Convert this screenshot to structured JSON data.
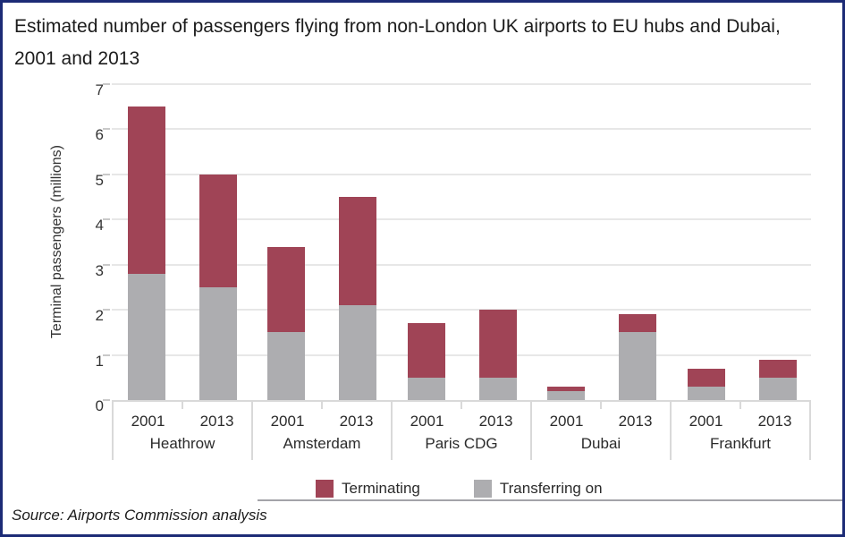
{
  "title": "Estimated number of passengers flying from non-London UK airports to EU hubs and Dubai, 2001 and 2013",
  "source": "Source: Airports Commission analysis",
  "colors": {
    "terminating": "#A04456",
    "transferring": "#ADADB0",
    "page_border": "#1C2B76",
    "gridline": "#E7E7E7",
    "axis_box_border": "#D9D9D9"
  },
  "chart_data": {
    "type": "bar",
    "stacked": true,
    "title": "Estimated number of passengers flying from non-London UK airports to EU hubs and Dubai, 2001 and 2013",
    "xlabel": "",
    "ylabel": "Terminal passengers (millions)",
    "ylim": [
      0,
      7
    ],
    "yticks": [
      0,
      1,
      2,
      3,
      4,
      5,
      6,
      7
    ],
    "grid": true,
    "legend_position": "bottom",
    "groups": [
      "Heathrow",
      "Amsterdam",
      "Paris CDG",
      "Dubai",
      "Frankfurt"
    ],
    "years": [
      "2001",
      "2013"
    ],
    "categories": [
      "Heathrow 2001",
      "Heathrow 2013",
      "Amsterdam 2001",
      "Amsterdam 2013",
      "Paris CDG 2001",
      "Paris CDG 2013",
      "Dubai 2001",
      "Dubai 2013",
      "Frankfurt 2001",
      "Frankfurt 2013"
    ],
    "series": [
      {
        "name": "Terminating",
        "color": "#A04456",
        "values": [
          3.7,
          2.5,
          1.9,
          2.4,
          1.2,
          1.5,
          0.1,
          0.4,
          0.4,
          0.4
        ]
      },
      {
        "name": "Transferring on",
        "color": "#ADADB0",
        "values": [
          2.8,
          2.5,
          1.5,
          2.1,
          0.5,
          0.5,
          0.2,
          1.5,
          0.3,
          0.5
        ]
      }
    ]
  }
}
